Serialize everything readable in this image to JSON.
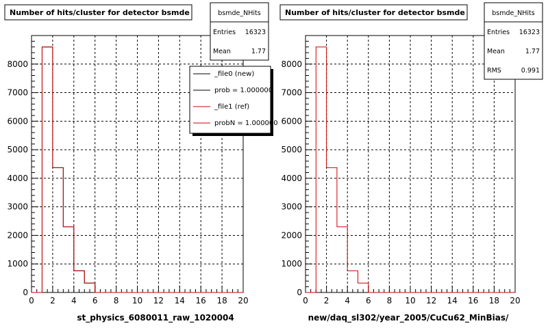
{
  "chart_data": [
    {
      "type": "histogram",
      "title": "Number of hits/cluster for detector bsmde",
      "xlabel": "st_physics_6080011_raw_1020004",
      "xlim": [
        0,
        20
      ],
      "ylim": [
        0,
        9000
      ],
      "grid": true,
      "bin_edges": [
        1,
        2,
        3,
        4,
        5,
        6
      ],
      "series": [
        {
          "name": "_file0 (new)",
          "color": "#000000",
          "values": [
            8600,
            4370,
            2300,
            760,
            330
          ]
        },
        {
          "name": "_file1 (ref)",
          "color": "#cc0000",
          "values": [
            8600,
            4370,
            2300,
            760,
            330
          ]
        }
      ],
      "stats": {
        "name": "bsmde_NHits",
        "rows": [
          {
            "label": "Entries",
            "value": "16323"
          },
          {
            "label": "Mean",
            "value": "1.77"
          }
        ]
      },
      "legend": {
        "placement": "top-right",
        "entries": [
          {
            "label": "_file0 (new)",
            "color": "#000000"
          },
          {
            "label": "prob = 1.000000",
            "color": "#000000"
          },
          {
            "label": "_file1 (ref)",
            "color": "#cc0000"
          },
          {
            "label": "probN = 1.000000",
            "color": "#cc0000"
          }
        ]
      }
    },
    {
      "type": "histogram",
      "title": "Number of hits/cluster for detector bsmde",
      "xlabel": "new/daq_sl302/year_2005/CuCu62_MinBias/",
      "xlim": [
        0,
        20
      ],
      "ylim": [
        0,
        9000
      ],
      "grid": true,
      "bin_edges": [
        1,
        2,
        3,
        4,
        5,
        6
      ],
      "series": [
        {
          "name": "",
          "color": "#cc0000",
          "values": [
            8600,
            4370,
            2300,
            760,
            330
          ]
        }
      ],
      "stats": {
        "name": "bsmde_NHits",
        "rows": [
          {
            "label": "Entries",
            "value": "16323"
          },
          {
            "label": "Mean",
            "value": "1.77"
          },
          {
            "label": "RMS",
            "value": "0.991"
          }
        ]
      }
    }
  ],
  "axes": {
    "x_ticks": [
      "0",
      "2",
      "4",
      "6",
      "8",
      "10",
      "12",
      "14",
      "16",
      "18",
      "20"
    ],
    "y_ticks": [
      "0",
      "1000",
      "2000",
      "3000",
      "4000",
      "5000",
      "6000",
      "7000",
      "8000"
    ]
  }
}
